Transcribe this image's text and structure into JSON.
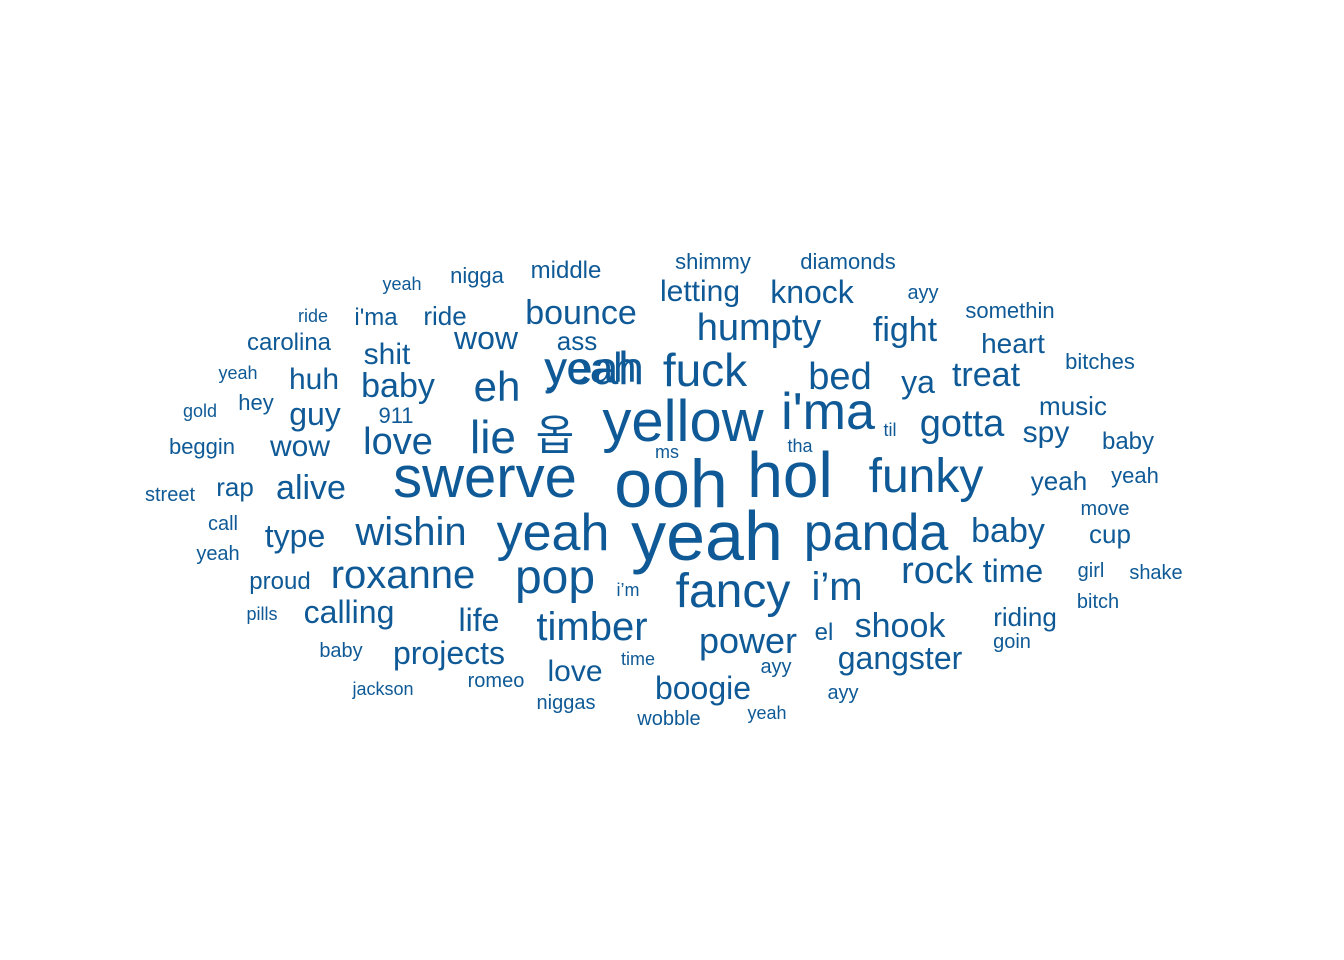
{
  "cloud": {
    "color": "#0f5a96",
    "words": [
      {
        "text": "yeah"
      },
      {
        "text": "ooh"
      },
      {
        "text": "hol"
      },
      {
        "text": "swerve"
      },
      {
        "text": "yellow"
      },
      {
        "text": "i'ma"
      },
      {
        "text": "panda"
      },
      {
        "text": "yeah"
      },
      {
        "text": "funky"
      },
      {
        "text": "fancy"
      },
      {
        "text": "pop"
      },
      {
        "text": "yeah"
      },
      {
        "text": "fuck"
      },
      {
        "text": "eh"
      },
      {
        "text": "lie"
      },
      {
        "text": "옵"
      },
      {
        "text": "i’m"
      },
      {
        "text": "wishin"
      },
      {
        "text": "roxanne"
      },
      {
        "text": "humpty"
      },
      {
        "text": "bed"
      },
      {
        "text": "love"
      },
      {
        "text": "timber"
      },
      {
        "text": "gotta"
      },
      {
        "text": "rock"
      },
      {
        "text": "baby"
      },
      {
        "text": "bounce"
      },
      {
        "text": "fight"
      },
      {
        "text": "power"
      },
      {
        "text": "shook"
      },
      {
        "text": "yeah"
      },
      {
        "text": "baby"
      },
      {
        "text": "treat"
      },
      {
        "text": "time"
      },
      {
        "text": "gangster"
      },
      {
        "text": "alive"
      },
      {
        "text": "wow"
      },
      {
        "text": "projects"
      },
      {
        "text": "type"
      },
      {
        "text": "calling"
      },
      {
        "text": "boogie"
      },
      {
        "text": "ya"
      },
      {
        "text": "knock"
      },
      {
        "text": "guy"
      },
      {
        "text": "wow"
      },
      {
        "text": "life"
      },
      {
        "text": "letting"
      },
      {
        "text": "love"
      },
      {
        "text": "spy"
      },
      {
        "text": "huh"
      },
      {
        "text": "shit"
      },
      {
        "text": "heart"
      },
      {
        "text": "music"
      },
      {
        "text": "riding"
      },
      {
        "text": "cup"
      },
      {
        "text": "baby"
      },
      {
        "text": "ride"
      },
      {
        "text": "ass"
      },
      {
        "text": "rap"
      },
      {
        "text": "carolina"
      },
      {
        "text": "middle"
      },
      {
        "text": "proud"
      },
      {
        "text": "i'ma"
      },
      {
        "text": "nigga"
      },
      {
        "text": "diamonds"
      },
      {
        "text": "shimmy"
      },
      {
        "text": "somethin"
      },
      {
        "text": "bitches"
      },
      {
        "text": "911"
      },
      {
        "text": "beggin"
      },
      {
        "text": "yeah"
      },
      {
        "text": "street"
      },
      {
        "text": "move"
      },
      {
        "text": "shake"
      },
      {
        "text": "bitch"
      },
      {
        "text": "niggas"
      },
      {
        "text": "romeo"
      },
      {
        "text": "wobble"
      },
      {
        "text": "el"
      },
      {
        "text": "baby"
      },
      {
        "text": "yeah"
      },
      {
        "text": "hey"
      },
      {
        "text": "ayy"
      },
      {
        "text": "ayy"
      },
      {
        "text": "ayy"
      },
      {
        "text": "girl"
      },
      {
        "text": "goin"
      },
      {
        "text": "call"
      },
      {
        "text": "yeah"
      },
      {
        "text": "yeah"
      },
      {
        "text": "yeah"
      },
      {
        "text": "gold"
      },
      {
        "text": "pills"
      },
      {
        "text": "i’m"
      },
      {
        "text": "tha"
      },
      {
        "text": "til"
      },
      {
        "text": "time"
      },
      {
        "text": "ride"
      },
      {
        "text": "jackson"
      },
      {
        "text": "ms"
      },
      {
        "text": "yeah"
      }
    ]
  }
}
